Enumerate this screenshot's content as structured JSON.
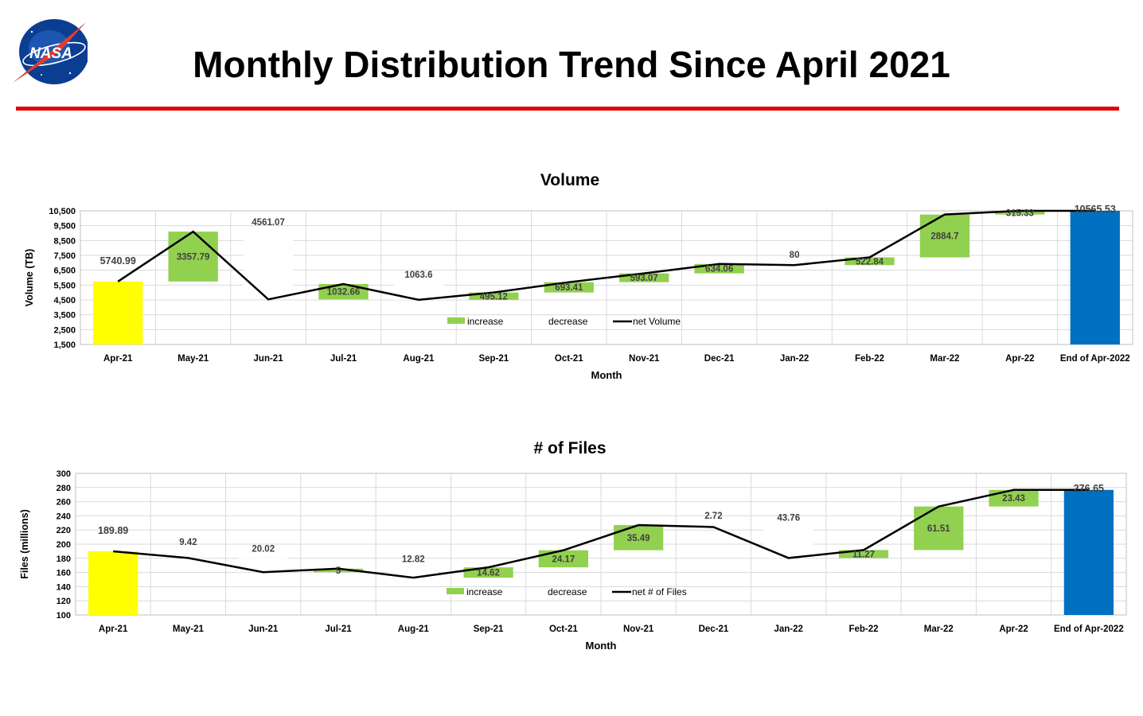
{
  "page": {
    "title": "Monthly Distribution Trend Since April 2021",
    "logo_text": "NASA",
    "rule_color": "#e00000"
  },
  "colors": {
    "start": "#ffff00",
    "end": "#0070c0",
    "increase": "#92d050",
    "decrease": "#ffffff",
    "net_line": "#000000"
  },
  "chart_data": [
    {
      "type": "waterfall",
      "title": "Volume",
      "xlabel": "Month",
      "ylabel": "Volume (TB)",
      "ylim": [
        1500,
        10500
      ],
      "yticks": [
        1500,
        2500,
        3500,
        4500,
        5500,
        6500,
        7500,
        8500,
        9500,
        10500
      ],
      "ytick_labels": [
        "1,500",
        "2,500",
        "3,500",
        "4,500",
        "5,500",
        "6,500",
        "7,500",
        "8,500",
        "9,500",
        "10,500"
      ],
      "categories": [
        "Apr-21",
        "May-21",
        "Jun-21",
        "Jul-21",
        "Aug-21",
        "Sep-21",
        "Oct-21",
        "Nov-21",
        "Dec-21",
        "Jan-22",
        "Feb-22",
        "Mar-22",
        "Apr-22",
        "End of Apr-2022"
      ],
      "bars": [
        {
          "low": 0,
          "high": 5740.99,
          "kind": "start"
        },
        {
          "low": 5740.99,
          "high": 9098.78,
          "kind": "increase"
        },
        {
          "low": 4537.71,
          "high": 9098.78,
          "kind": "decrease"
        },
        {
          "low": 4537.71,
          "high": 5570.37,
          "kind": "increase"
        },
        {
          "low": 4506.77,
          "high": 5570.37,
          "kind": "decrease"
        },
        {
          "low": 4506.77,
          "high": 5001.89,
          "kind": "increase"
        },
        {
          "low": 5001.89,
          "high": 5695.3,
          "kind": "increase"
        },
        {
          "low": 5695.3,
          "high": 6288.37,
          "kind": "increase"
        },
        {
          "low": 6288.37,
          "high": 6922.43,
          "kind": "increase"
        },
        {
          "low": 6842.43,
          "high": 6922.43,
          "kind": "decrease"
        },
        {
          "low": 6842.43,
          "high": 7365.27,
          "kind": "increase"
        },
        {
          "low": 7365.27,
          "high": 10249.97,
          "kind": "increase"
        },
        {
          "low": 10249.97,
          "high": 10565.3,
          "kind": "increase"
        },
        {
          "low": 0,
          "high": 10565.53,
          "kind": "end"
        }
      ],
      "labels": [
        "5740.99",
        "3357.79",
        "4561.07",
        "1032.66",
        "1063.6",
        "495.12",
        "693.41",
        "593.07",
        "634.06",
        "80",
        "522.84",
        "2884.7",
        "315.33",
        "10565.53"
      ],
      "net_series": {
        "name": "net Volume",
        "values": [
          5740.99,
          9098.78,
          4537.71,
          5570.37,
          4506.77,
          5001.89,
          5695.3,
          6288.37,
          6922.43,
          6842.43,
          7365.27,
          10249.97,
          10565.3,
          10565.53
        ]
      },
      "legend": [
        "increase",
        "decrease",
        "net Volume"
      ],
      "grid": true
    },
    {
      "type": "waterfall",
      "title": "# of Files",
      "xlabel": "Month",
      "ylabel": "Files (millions)",
      "ylim": [
        100,
        300
      ],
      "yticks": [
        100,
        120,
        140,
        160,
        180,
        200,
        220,
        240,
        260,
        280,
        300
      ],
      "ytick_labels": [
        "100",
        "120",
        "140",
        "160",
        "180",
        "200",
        "220",
        "240",
        "260",
        "280",
        "300"
      ],
      "categories": [
        "Apr-21",
        "May-21",
        "Jun-21",
        "Jul-21",
        "Aug-21",
        "Sep-21",
        "Oct-21",
        "Nov-21",
        "Dec-21",
        "Jan-22",
        "Feb-22",
        "Mar-22",
        "Apr-22",
        "End of Apr-2022"
      ],
      "bars": [
        {
          "low": 0,
          "high": 189.89,
          "kind": "start"
        },
        {
          "low": 180.47,
          "high": 189.89,
          "kind": "decrease"
        },
        {
          "low": 160.45,
          "high": 180.47,
          "kind": "decrease"
        },
        {
          "low": 160.45,
          "high": 165.45,
          "kind": "increase"
        },
        {
          "low": 152.63,
          "high": 165.45,
          "kind": "decrease"
        },
        {
          "low": 152.63,
          "high": 167.25,
          "kind": "increase"
        },
        {
          "low": 167.25,
          "high": 191.42,
          "kind": "increase"
        },
        {
          "low": 191.42,
          "high": 226.91,
          "kind": "increase"
        },
        {
          "low": 224.19,
          "high": 226.91,
          "kind": "decrease"
        },
        {
          "low": 180.43,
          "high": 224.19,
          "kind": "decrease"
        },
        {
          "low": 180.43,
          "high": 191.7,
          "kind": "increase"
        },
        {
          "low": 191.7,
          "high": 253.21,
          "kind": "increase"
        },
        {
          "low": 253.21,
          "high": 276.64,
          "kind": "increase"
        },
        {
          "low": 0,
          "high": 276.65,
          "kind": "end"
        }
      ],
      "labels": [
        "189.89",
        "9.42",
        "20.02",
        "5",
        "12.82",
        "14.62",
        "24.17",
        "35.49",
        "2.72",
        "43.76",
        "11.27",
        "61.51",
        "23.43",
        "276.65"
      ],
      "net_series": {
        "name": "net # of Files",
        "values": [
          189.89,
          180.47,
          160.45,
          165.45,
          152.63,
          167.25,
          191.42,
          226.91,
          224.19,
          180.43,
          191.7,
          253.21,
          276.64,
          276.65
        ]
      },
      "legend": [
        "increase",
        "decrease",
        "net # of Files"
      ],
      "grid": true
    }
  ]
}
